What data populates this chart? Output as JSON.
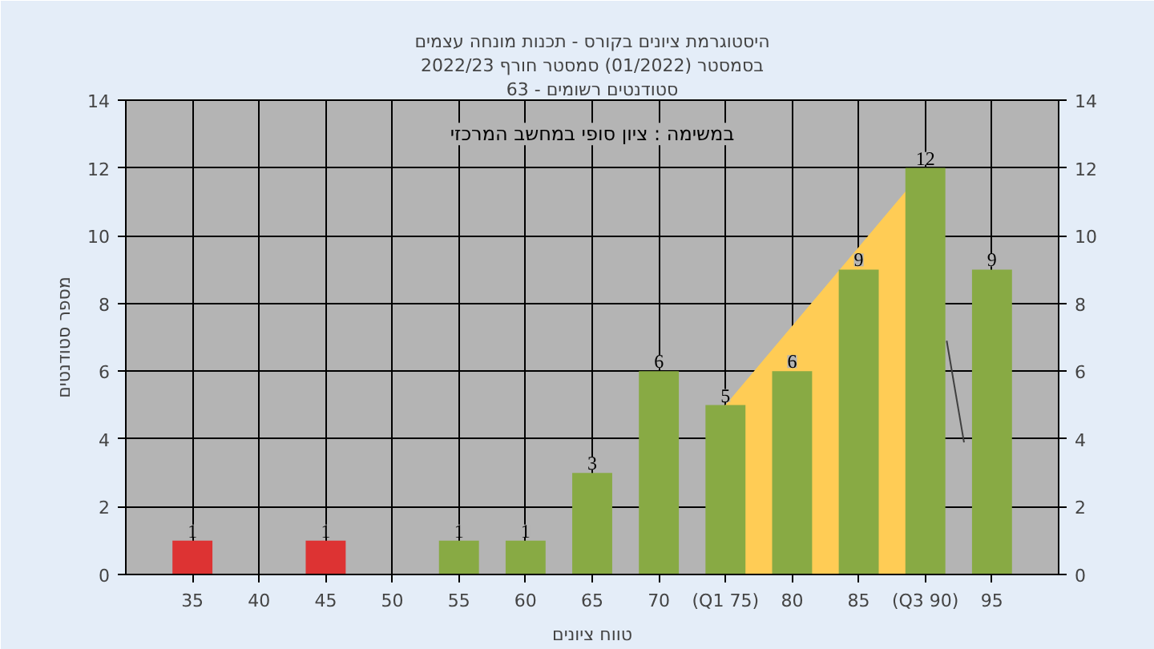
{
  "chart_data": {
    "type": "bar",
    "title": "היסטוגרמת ציונים בקורס - תכנות מונחה עצמים",
    "subtitle": "בסמסטר (01/2022) סמסטר חורף 2022/23",
    "xlabel": "טווח ציונים",
    "ylabel": "מספר סטודנטים",
    "annotations": [
      "סטודנטים רשומים - 63",
      "במשימה : ציון סופי במחשב המרכזי"
    ],
    "x": [
      35,
      40,
      45,
      50,
      55,
      60,
      65,
      70,
      75,
      80,
      85,
      90,
      95
    ],
    "series": [
      {
        "type": "area",
        "color": "#ffcc55",
        "x": [
          75,
          90
        ],
        "values": [
          5,
          12
        ]
      },
      {
        "type": "line",
        "color": "#404040",
        "x": [
          91.6,
          92.9
        ],
        "values": [
          6.9,
          3.9
        ]
      },
      {
        "values": [
          1,
          0,
          1,
          0,
          1,
          1,
          3,
          6,
          5,
          6,
          9,
          12,
          9
        ],
        "colors": [
          "#dd3333",
          "#dd3333",
          "#dd3333",
          "#88aa44",
          "#88aa44",
          "#88aa44",
          "#88aa44",
          "#88aa44",
          "#88aa44",
          "#88aa44",
          "#88aa44",
          "#88aa44",
          "#88aa44"
        ],
        "value_labels": [
          "1",
          null,
          "1",
          null,
          "1",
          "1",
          "3",
          "6",
          "5",
          "6",
          "9",
          "12",
          "9"
        ]
      }
    ],
    "xlim": [
      30,
      100
    ],
    "xticks": [
      35,
      40,
      45,
      50,
      55,
      60,
      65,
      70,
      {
        "value": 75,
        "label": "(Q1 75)"
      },
      80,
      85,
      {
        "value": 90,
        "label": "(Q3 90)"
      },
      95
    ],
    "ylim": [
      0,
      14
    ],
    "yticks": [
      0,
      2,
      4,
      6,
      8,
      10,
      12,
      14
    ],
    "y2lim": [
      0,
      14
    ],
    "y2ticks": [
      0,
      2,
      4,
      6,
      8,
      10,
      12,
      14
    ],
    "grid": true
  }
}
